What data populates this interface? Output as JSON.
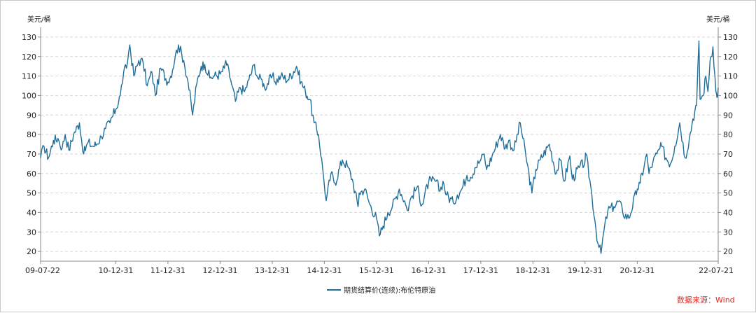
{
  "chart_data": {
    "type": "line",
    "y_unit_left": "美元/桶",
    "y_unit_right": "美元/桶",
    "ylim": [
      15,
      135
    ],
    "y_ticks": [
      20,
      30,
      40,
      50,
      60,
      70,
      80,
      90,
      100,
      110,
      120,
      130
    ],
    "x_tick_labels": [
      "09-07-22",
      "10-12-31",
      "11-12-31",
      "12-12-31",
      "13-12-31",
      "14-12-31",
      "15-12-31",
      "16-12-31",
      "17-12-31",
      "18-12-31",
      "19-12-31",
      "20-12-31",
      "22-07-21"
    ],
    "x_tick_dates": [
      "2009-07-22",
      "2010-12-31",
      "2011-12-31",
      "2012-12-31",
      "2013-12-31",
      "2014-12-31",
      "2015-12-31",
      "2016-12-31",
      "2017-12-31",
      "2018-12-31",
      "2019-12-31",
      "2020-12-31",
      "2022-07-21"
    ],
    "grid": "horizontal-dashed",
    "legend_position": "bottom-center",
    "series": [
      {
        "name": "期货结算价(连续):布伦特原油",
        "color": "#1f6e99",
        "points": [
          [
            "2009-07-22",
            68
          ],
          [
            "2009-08-15",
            74
          ],
          [
            "2009-09-15",
            68
          ],
          [
            "2009-10-20",
            77
          ],
          [
            "2009-11-20",
            78
          ],
          [
            "2009-12-20",
            73
          ],
          [
            "2010-01-10",
            80
          ],
          [
            "2010-02-05",
            72
          ],
          [
            "2010-03-10",
            80
          ],
          [
            "2010-04-20",
            86
          ],
          [
            "2010-05-20",
            70
          ],
          [
            "2010-06-20",
            76
          ],
          [
            "2010-07-20",
            74
          ],
          [
            "2010-08-20",
            75
          ],
          [
            "2010-09-20",
            79
          ],
          [
            "2010-10-20",
            83
          ],
          [
            "2010-11-20",
            86
          ],
          [
            "2010-12-31",
            93
          ],
          [
            "2011-01-31",
            100
          ],
          [
            "2011-02-24",
            112
          ],
          [
            "2011-03-15",
            114
          ],
          [
            "2011-04-08",
            126
          ],
          [
            "2011-05-06",
            110
          ],
          [
            "2011-06-10",
            118
          ],
          [
            "2011-07-10",
            117
          ],
          [
            "2011-08-08",
            105
          ],
          [
            "2011-09-10",
            112
          ],
          [
            "2011-10-04",
            100
          ],
          [
            "2011-11-10",
            114
          ],
          [
            "2011-12-31",
            107
          ],
          [
            "2012-01-20",
            110
          ],
          [
            "2012-02-20",
            120
          ],
          [
            "2012-03-14",
            126
          ],
          [
            "2012-04-20",
            118
          ],
          [
            "2012-05-20",
            107
          ],
          [
            "2012-06-21",
            90
          ],
          [
            "2012-07-20",
            106
          ],
          [
            "2012-08-20",
            115
          ],
          [
            "2012-09-14",
            116
          ],
          [
            "2012-10-20",
            109
          ],
          [
            "2012-11-20",
            110
          ],
          [
            "2012-12-31",
            111
          ],
          [
            "2013-01-30",
            114
          ],
          [
            "2013-02-08",
            118
          ],
          [
            "2013-03-15",
            108
          ],
          [
            "2013-04-17",
            97
          ],
          [
            "2013-05-20",
            104
          ],
          [
            "2013-06-20",
            102
          ],
          [
            "2013-07-20",
            108
          ],
          [
            "2013-08-28",
            116
          ],
          [
            "2013-09-20",
            109
          ],
          [
            "2013-10-20",
            108
          ],
          [
            "2013-11-07",
            104
          ],
          [
            "2013-12-31",
            110
          ],
          [
            "2014-01-20",
            107
          ],
          [
            "2014-03-01",
            110
          ],
          [
            "2014-04-20",
            108
          ],
          [
            "2014-06-19",
            115
          ],
          [
            "2014-07-20",
            107
          ],
          [
            "2014-08-20",
            102
          ],
          [
            "2014-09-20",
            98
          ],
          [
            "2014-10-20",
            86
          ],
          [
            "2014-11-20",
            80
          ],
          [
            "2014-12-20",
            62
          ],
          [
            "2015-01-13",
            46
          ],
          [
            "2015-02-15",
            60
          ],
          [
            "2015-03-15",
            55
          ],
          [
            "2015-05-06",
            67
          ],
          [
            "2015-06-10",
            64
          ],
          [
            "2015-07-15",
            57
          ],
          [
            "2015-08-24",
            43
          ],
          [
            "2015-09-01",
            50
          ],
          [
            "2015-10-10",
            52
          ],
          [
            "2015-11-15",
            44
          ],
          [
            "2015-12-31",
            37
          ],
          [
            "2016-01-20",
            28
          ],
          [
            "2016-02-15",
            33
          ],
          [
            "2016-03-20",
            40
          ],
          [
            "2016-04-20",
            43
          ],
          [
            "2016-06-08",
            52
          ],
          [
            "2016-07-15",
            46
          ],
          [
            "2016-08-03",
            41
          ],
          [
            "2016-09-01",
            48
          ],
          [
            "2016-10-10",
            53
          ],
          [
            "2016-11-14",
            44
          ],
          [
            "2016-12-31",
            56
          ],
          [
            "2017-01-20",
            56
          ],
          [
            "2017-02-20",
            56
          ],
          [
            "2017-03-20",
            51
          ],
          [
            "2017-04-10",
            56
          ],
          [
            "2017-05-05",
            49
          ],
          [
            "2017-06-21",
            45
          ],
          [
            "2017-07-20",
            49
          ],
          [
            "2017-08-20",
            52
          ],
          [
            "2017-09-25",
            59
          ],
          [
            "2017-10-20",
            58
          ],
          [
            "2017-11-20",
            63
          ],
          [
            "2017-12-31",
            67
          ],
          [
            "2018-01-24",
            70
          ],
          [
            "2018-02-10",
            62
          ],
          [
            "2018-03-20",
            69
          ],
          [
            "2018-05-17",
            80
          ],
          [
            "2018-06-20",
            73
          ],
          [
            "2018-07-15",
            77
          ],
          [
            "2018-08-20",
            72
          ],
          [
            "2018-10-03",
            86
          ],
          [
            "2018-11-10",
            70
          ],
          [
            "2018-12-24",
            50
          ],
          [
            "2019-01-20",
            62
          ],
          [
            "2019-02-20",
            67
          ],
          [
            "2019-04-25",
            75
          ],
          [
            "2019-06-12",
            60
          ],
          [
            "2019-07-10",
            67
          ],
          [
            "2019-08-07",
            56
          ],
          [
            "2019-09-16",
            69
          ],
          [
            "2019-10-03",
            57
          ],
          [
            "2019-11-20",
            63
          ],
          [
            "2019-12-31",
            66
          ],
          [
            "2020-01-06",
            70
          ],
          [
            "2020-02-10",
            53
          ],
          [
            "2020-03-09",
            36
          ],
          [
            "2020-03-31",
            24
          ],
          [
            "2020-04-21",
            19
          ],
          [
            "2020-05-10",
            30
          ],
          [
            "2020-06-08",
            41
          ],
          [
            "2020-07-20",
            43
          ],
          [
            "2020-08-26",
            46
          ],
          [
            "2020-09-20",
            40
          ],
          [
            "2020-11-02",
            37
          ],
          [
            "2020-12-31",
            52
          ],
          [
            "2021-01-20",
            55
          ],
          [
            "2021-02-20",
            65
          ],
          [
            "2021-03-08",
            70
          ],
          [
            "2021-03-23",
            60
          ],
          [
            "2021-04-20",
            66
          ],
          [
            "2021-05-18",
            70
          ],
          [
            "2021-06-20",
            74
          ],
          [
            "2021-07-20",
            68
          ],
          [
            "2021-08-20",
            65
          ],
          [
            "2021-09-20",
            74
          ],
          [
            "2021-10-25",
            86
          ],
          [
            "2021-12-01",
            68
          ],
          [
            "2021-12-31",
            78
          ],
          [
            "2022-01-25",
            88
          ],
          [
            "2022-02-20",
            95
          ],
          [
            "2022-03-08",
            128
          ],
          [
            "2022-03-16",
            98
          ],
          [
            "2022-04-07",
            100
          ],
          [
            "2022-04-25",
            110
          ],
          [
            "2022-05-10",
            102
          ],
          [
            "2022-05-25",
            118
          ],
          [
            "2022-06-14",
            125
          ],
          [
            "2022-07-05",
            102
          ],
          [
            "2022-07-12",
            99
          ],
          [
            "2022-07-21",
            104
          ]
        ]
      }
    ]
  },
  "source_text": "数据来源：Wind"
}
